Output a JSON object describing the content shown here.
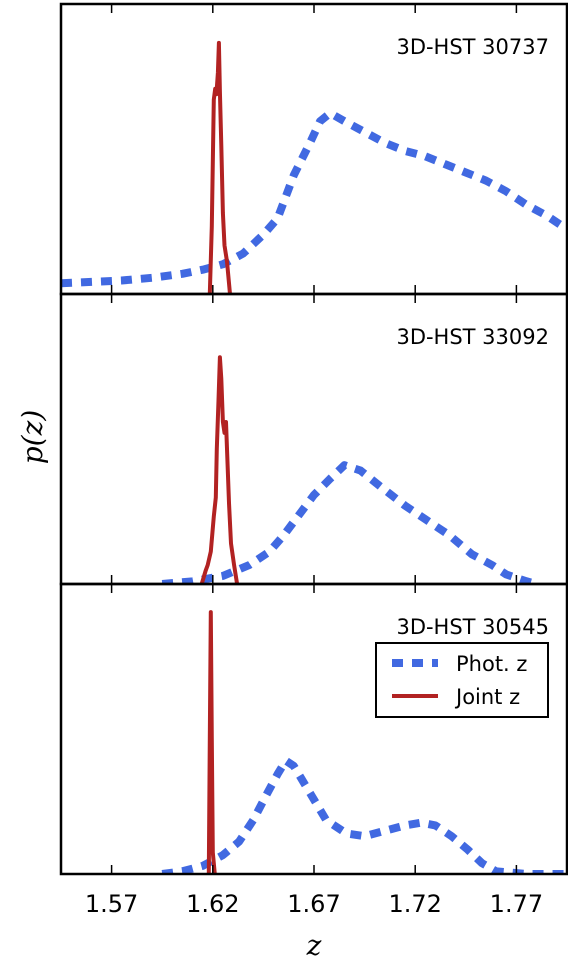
{
  "colors": {
    "phot": "#4169E1",
    "joint": "#B22222",
    "frame": "#000000"
  },
  "chart_data": {
    "type": "line",
    "xlabel": "z",
    "ylabel": "p(z)",
    "xlim": [
      1.545,
      1.795
    ],
    "x_ticks": [
      "1.57",
      "1.62",
      "1.67",
      "1.72",
      "1.77"
    ],
    "grid": false,
    "legend": {
      "placement": "right, bottom panel",
      "entries": [
        "Phot. z",
        "Joint z"
      ]
    },
    "panels": [
      {
        "label": "3D-HST 30737",
        "ylim": [
          0,
          1
        ],
        "series": [
          {
            "name": "Phot. z",
            "style": "dashed",
            "points": [
              [
                1.545,
                0.04
              ],
              [
                1.56,
                0.045
              ],
              [
                1.575,
                0.05
              ],
              [
                1.59,
                0.06
              ],
              [
                1.605,
                0.075
              ],
              [
                1.615,
                0.09
              ],
              [
                1.625,
                0.11
              ],
              [
                1.635,
                0.15
              ],
              [
                1.645,
                0.22
              ],
              [
                1.652,
                0.28
              ],
              [
                1.656,
                0.36
              ],
              [
                1.66,
                0.44
              ],
              [
                1.664,
                0.5
              ],
              [
                1.668,
                0.56
              ],
              [
                1.673,
                0.64
              ],
              [
                1.678,
                0.67
              ],
              [
                1.685,
                0.64
              ],
              [
                1.695,
                0.6
              ],
              [
                1.705,
                0.56
              ],
              [
                1.715,
                0.53
              ],
              [
                1.725,
                0.51
              ],
              [
                1.735,
                0.48
              ],
              [
                1.745,
                0.45
              ],
              [
                1.755,
                0.42
              ],
              [
                1.765,
                0.38
              ],
              [
                1.775,
                0.33
              ],
              [
                1.785,
                0.29
              ],
              [
                1.795,
                0.24
              ]
            ]
          },
          {
            "name": "Joint z",
            "style": "solid",
            "points": [
              [
                1.6185,
                0.0
              ],
              [
                1.6195,
                0.25
              ],
              [
                1.6205,
                0.72
              ],
              [
                1.6212,
                0.76
              ],
              [
                1.6218,
                0.74
              ],
              [
                1.6225,
                0.82
              ],
              [
                1.623,
                0.93
              ],
              [
                1.6235,
                0.75
              ],
              [
                1.6242,
                0.55
              ],
              [
                1.625,
                0.3
              ],
              [
                1.6258,
                0.18
              ],
              [
                1.627,
                0.12
              ],
              [
                1.6285,
                0.0
              ]
            ]
          }
        ]
      },
      {
        "label": "3D-HST 33092",
        "ylim": [
          0,
          1
        ],
        "series": [
          {
            "name": "Phot. z",
            "style": "dashed",
            "points": [
              [
                1.595,
                0.0
              ],
              [
                1.61,
                0.01
              ],
              [
                1.625,
                0.03
              ],
              [
                1.638,
                0.07
              ],
              [
                1.648,
                0.12
              ],
              [
                1.655,
                0.18
              ],
              [
                1.662,
                0.25
              ],
              [
                1.67,
                0.33
              ],
              [
                1.678,
                0.39
              ],
              [
                1.685,
                0.44
              ],
              [
                1.693,
                0.42
              ],
              [
                1.703,
                0.36
              ],
              [
                1.715,
                0.29
              ],
              [
                1.725,
                0.24
              ],
              [
                1.737,
                0.18
              ],
              [
                1.748,
                0.11
              ],
              [
                1.758,
                0.07
              ],
              [
                1.765,
                0.035
              ],
              [
                1.775,
                0.01
              ],
              [
                1.78,
                0.0
              ]
            ]
          },
          {
            "name": "Joint z",
            "style": "solid",
            "points": [
              [
                1.6145,
                0.0
              ],
              [
                1.6165,
                0.05
              ],
              [
                1.6175,
                0.07
              ],
              [
                1.619,
                0.12
              ],
              [
                1.6205,
                0.25
              ],
              [
                1.6215,
                0.32
              ],
              [
                1.622,
                0.5
              ],
              [
                1.6228,
                0.68
              ],
              [
                1.6235,
                0.84
              ],
              [
                1.6242,
                0.76
              ],
              [
                1.625,
                0.6
              ],
              [
                1.6258,
                0.56
              ],
              [
                1.6265,
                0.6
              ],
              [
                1.627,
                0.5
              ],
              [
                1.628,
                0.3
              ],
              [
                1.629,
                0.15
              ],
              [
                1.6305,
                0.07
              ],
              [
                1.632,
                0.0
              ]
            ]
          }
        ]
      },
      {
        "label": "3D-HST 30545",
        "ylim": [
          0,
          1
        ],
        "series": [
          {
            "name": "Phot. z",
            "style": "dashed",
            "points": [
              [
                1.595,
                0.0
              ],
              [
                1.605,
                0.01
              ],
              [
                1.615,
                0.03
              ],
              [
                1.625,
                0.07
              ],
              [
                1.633,
                0.12
              ],
              [
                1.64,
                0.2
              ],
              [
                1.647,
                0.3
              ],
              [
                1.652,
                0.37
              ],
              [
                1.656,
                0.42
              ],
              [
                1.66,
                0.4
              ],
              [
                1.668,
                0.3
              ],
              [
                1.676,
                0.2
              ],
              [
                1.686,
                0.15
              ],
              [
                1.695,
                0.14
              ],
              [
                1.705,
                0.16
              ],
              [
                1.715,
                0.18
              ],
              [
                1.723,
                0.19
              ],
              [
                1.73,
                0.18
              ],
              [
                1.738,
                0.14
              ],
              [
                1.746,
                0.09
              ],
              [
                1.753,
                0.04
              ],
              [
                1.76,
                0.01
              ],
              [
                1.775,
                0.0
              ],
              [
                1.795,
                0.0
              ]
            ]
          },
          {
            "name": "Joint z",
            "style": "solid",
            "points": [
              [
                1.618,
                0.0
              ],
              [
                1.6185,
                0.5
              ],
              [
                1.619,
                0.97
              ],
              [
                1.6195,
                0.5
              ],
              [
                1.62,
                0.08
              ],
              [
                1.621,
                0.0
              ]
            ]
          }
        ]
      }
    ]
  }
}
